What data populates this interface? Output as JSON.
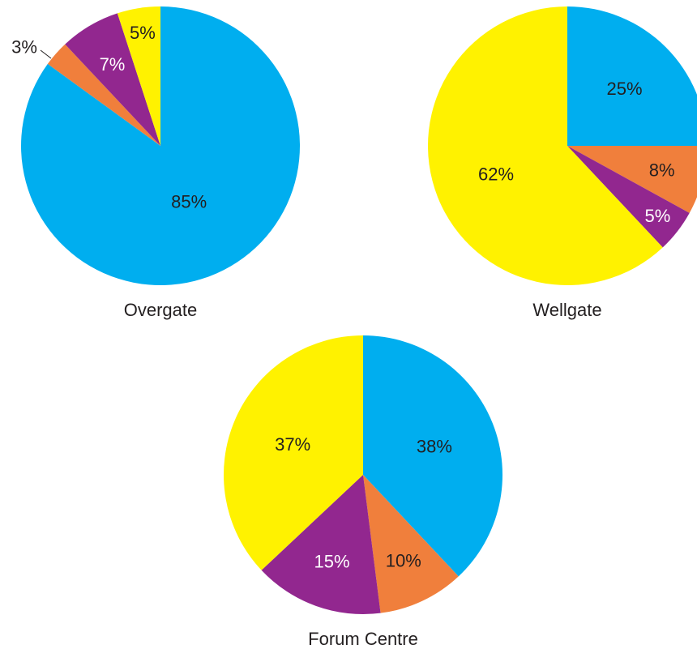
{
  "colors": {
    "blue": "#00aeef",
    "orange": "#f07f3c",
    "purple": "#92278f",
    "yellow": "#fff200",
    "text_dark": "#231f20",
    "text_light": "#ffffff"
  },
  "chart_data": [
    {
      "type": "pie",
      "title": "Overgate",
      "slices": [
        {
          "value": 85,
          "label": "85%",
          "color_key": "blue",
          "label_color": "text_dark"
        },
        {
          "value": 3,
          "label": "3%",
          "color_key": "orange",
          "label_color": "text_dark",
          "leader": true
        },
        {
          "value": 7,
          "label": "7%",
          "color_key": "purple",
          "label_color": "text_light"
        },
        {
          "value": 5,
          "label": "5%",
          "color_key": "yellow",
          "label_color": "text_dark"
        }
      ]
    },
    {
      "type": "pie",
      "title": "Wellgate",
      "slices": [
        {
          "value": 25,
          "label": "25%",
          "color_key": "blue",
          "label_color": "text_dark"
        },
        {
          "value": 8,
          "label": "8%",
          "color_key": "orange",
          "label_color": "text_dark"
        },
        {
          "value": 5,
          "label": "5%",
          "color_key": "purple",
          "label_color": "text_light"
        },
        {
          "value": 62,
          "label": "62%",
          "color_key": "yellow",
          "label_color": "text_dark"
        }
      ]
    },
    {
      "type": "pie",
      "title": "Forum Centre",
      "slices": [
        {
          "value": 38,
          "label": "38%",
          "color_key": "blue",
          "label_color": "text_dark"
        },
        {
          "value": 10,
          "label": "10%",
          "color_key": "orange",
          "label_color": "text_dark"
        },
        {
          "value": 15,
          "label": "15%",
          "color_key": "purple",
          "label_color": "text_light"
        },
        {
          "value": 37,
          "label": "37%",
          "color_key": "yellow",
          "label_color": "text_dark"
        }
      ]
    }
  ]
}
